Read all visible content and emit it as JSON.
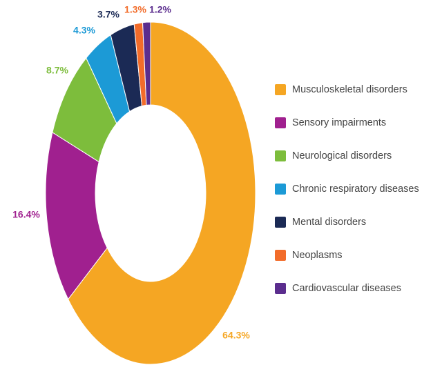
{
  "chart_data": {
    "type": "donut",
    "categories": [
      "Musculoskeletal disorders",
      "Sensory impairments",
      "Neurological disorders",
      "Chronic respiratory diseases",
      "Mental disorders",
      "Neoplasms",
      "Cardiovascular diseases"
    ],
    "values": [
      64.3,
      16.4,
      8.7,
      4.3,
      3.7,
      1.3,
      1.2
    ],
    "value_labels": [
      "64.3%",
      "16.4%",
      "8.7%",
      "4.3%",
      "3.7%",
      "1.3%",
      "1.2%"
    ],
    "colors": [
      "#f5a623",
      "#a0208f",
      "#7dbd3c",
      "#1c9ad6",
      "#1b2a55",
      "#f26c2a",
      "#5b2d8e"
    ],
    "legend": "right"
  }
}
